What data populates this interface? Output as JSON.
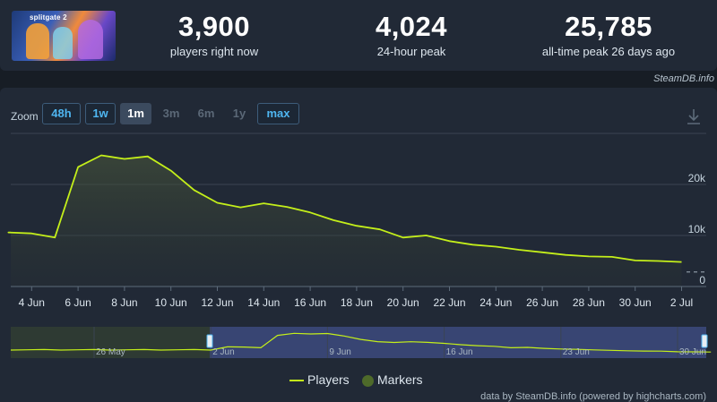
{
  "header": {
    "game_image": {
      "alt": "Splitgate 2",
      "logo_text": "splitgate 2"
    },
    "stats": [
      {
        "value": "3,900",
        "label": "players right now"
      },
      {
        "value": "4,024",
        "label": "24-hour peak"
      },
      {
        "value": "25,785",
        "label": "all-time peak 26 days ago"
      }
    ],
    "site_link": "SteamDB.info"
  },
  "zoom": {
    "label": "Zoom",
    "buttons": [
      {
        "label": "48h",
        "state": "enabled"
      },
      {
        "label": "1w",
        "state": "enabled"
      },
      {
        "label": "1m",
        "state": "selected"
      },
      {
        "label": "3m",
        "state": "disabled"
      },
      {
        "label": "6m",
        "state": "disabled"
      },
      {
        "label": "1y",
        "state": "disabled"
      },
      {
        "label": "max",
        "state": "enabled"
      }
    ]
  },
  "download_icon": "download-icon",
  "legend": {
    "players": "Players",
    "markers": "Markers"
  },
  "credits": "data by SteamDB.info (powered by highcharts.com)",
  "colors": {
    "line": "#c4ef1a",
    "background": "#212936",
    "grid": "#3a4453",
    "navigator_window": "#3c4a7e"
  },
  "chart_data": {
    "type": "line",
    "title": "",
    "xlabel": "",
    "ylabel": "",
    "series": [
      {
        "name": "Players",
        "x": [
          "2025-06-03",
          "2025-06-04",
          "2025-06-05",
          "2025-06-06",
          "2025-06-07",
          "2025-06-08",
          "2025-06-09",
          "2025-06-10",
          "2025-06-11",
          "2025-06-12",
          "2025-06-13",
          "2025-06-14",
          "2025-06-15",
          "2025-06-16",
          "2025-06-17",
          "2025-06-18",
          "2025-06-19",
          "2025-06-20",
          "2025-06-21",
          "2025-06-22",
          "2025-06-23",
          "2025-06-24",
          "2025-06-25",
          "2025-06-26",
          "2025-06-27",
          "2025-06-28",
          "2025-06-29",
          "2025-06-30",
          "2025-07-01",
          "2025-07-02"
        ],
        "values": [
          10600,
          10400,
          9600,
          23400,
          25700,
          25000,
          25500,
          22700,
          18900,
          16400,
          15500,
          16300,
          15600,
          14500,
          13000,
          11900,
          11200,
          9600,
          10000,
          8900,
          8200,
          7800,
          7200,
          6700,
          6200,
          5900,
          5800,
          5100,
          5000,
          4800
        ]
      }
    ],
    "y_ticks": [
      0,
      10000,
      20000
    ],
    "y_tick_labels": [
      "0",
      "10k",
      "20k"
    ],
    "x_tick_labels": [
      "4 Jun",
      "6 Jun",
      "8 Jun",
      "10 Jun",
      "12 Jun",
      "14 Jun",
      "16 Jun",
      "18 Jun",
      "20 Jun",
      "22 Jun",
      "24 Jun",
      "26 Jun",
      "28 Jun",
      "30 Jun",
      "2 Jul"
    ],
    "current_value": 3900,
    "ylim": [
      0,
      30000
    ],
    "grid": true,
    "legend_position": "bottom-center",
    "navigator": {
      "x_tick_labels": [
        "26 May",
        "2 Jun",
        "9 Jun",
        "16 Jun",
        "23 Jun",
        "30 Jun"
      ],
      "selected_range": [
        "2025-06-02",
        "2025-07-02"
      ]
    }
  }
}
